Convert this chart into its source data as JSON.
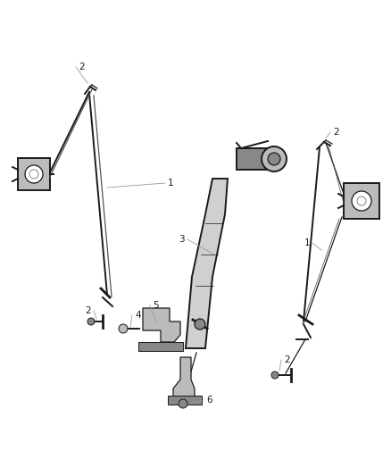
{
  "background_color": "#ffffff",
  "fig_width": 4.38,
  "fig_height": 5.33,
  "dpi": 100,
  "gray_dark": "#1a1a1a",
  "gray_mid": "#555555",
  "gray_light": "#999999",
  "gray_fill": "#888888",
  "gray_fill2": "#bbbbbb",
  "label_fontsize": 7.5
}
